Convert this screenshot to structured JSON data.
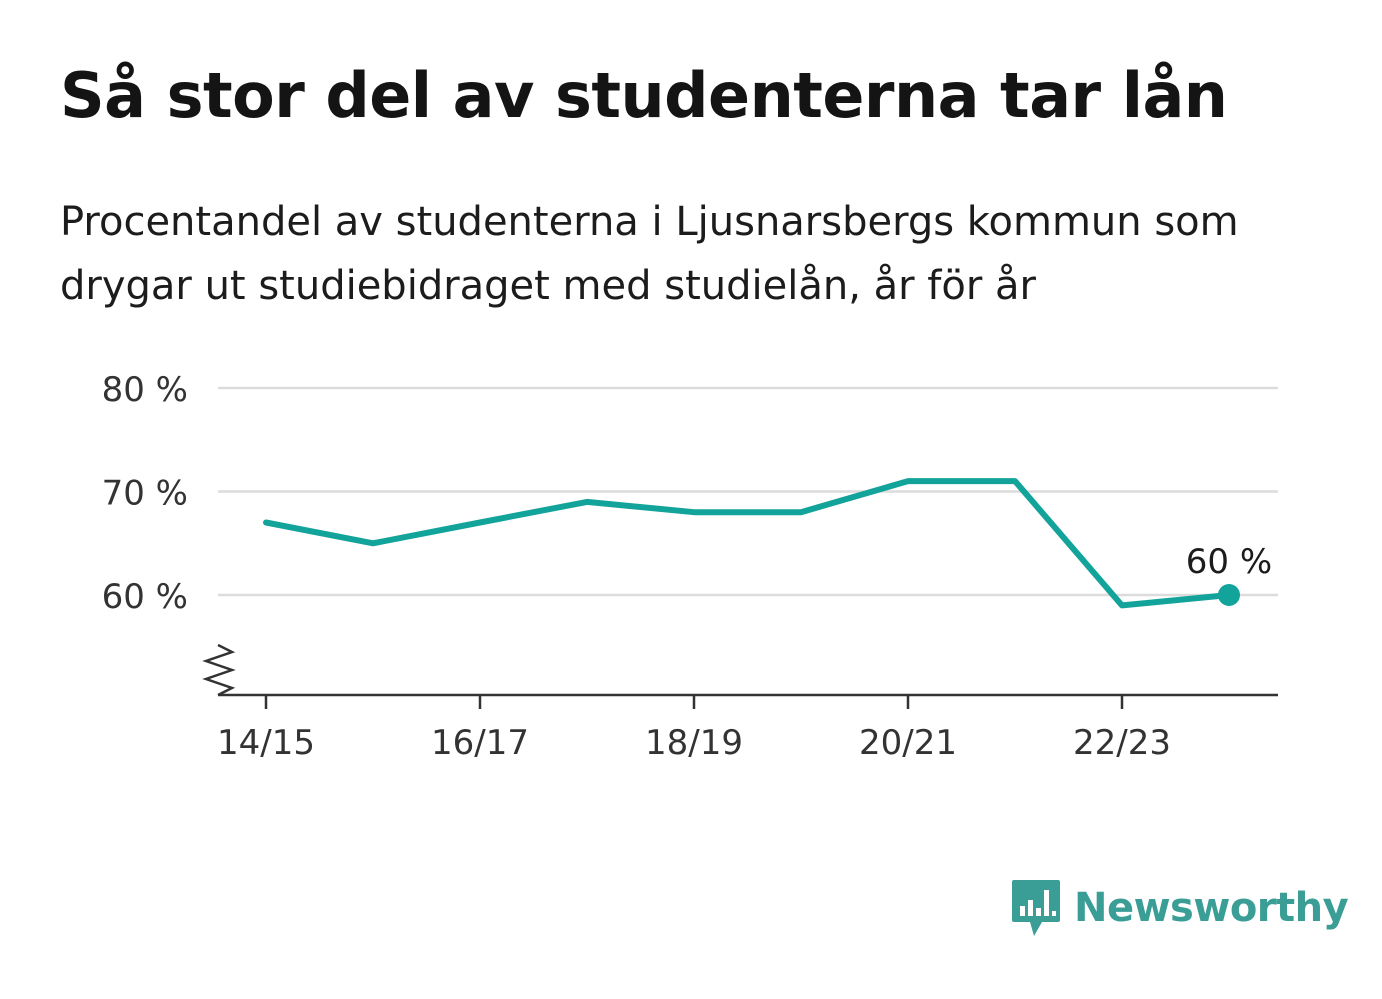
{
  "header": {
    "title": "Så stor del av studenterna tar lån",
    "subtitle": "Procentandel av studenterna i Ljusnarsbergs kommun som drygar ut studiebidraget med studielån, år för år"
  },
  "chart_data": {
    "type": "line",
    "x": [
      "14/15",
      "15/16",
      "16/17",
      "17/18",
      "18/19",
      "19/20",
      "20/21",
      "21/22",
      "22/23",
      "23/24"
    ],
    "xtick_labels": [
      "14/15",
      "16/17",
      "18/19",
      "20/21",
      "22/23"
    ],
    "series": [
      {
        "values": [
          67,
          65,
          67,
          69,
          68,
          68,
          71,
          71,
          59,
          60
        ]
      }
    ],
    "ytick_values": [
      60,
      70,
      80
    ],
    "ytick_labels": [
      "60 %",
      "70 %",
      "80 %"
    ],
    "ylim": [
      50,
      80
    ],
    "last_value_label": "60 %",
    "axis_break": true,
    "grid": true,
    "colors": {
      "line": "#12a39a",
      "grid": "#dcdcdc",
      "axis": "#333333"
    }
  },
  "branding": {
    "name": "Newsworthy",
    "color": "#3b9e96",
    "icon": "newsworthy-logo-icon"
  }
}
